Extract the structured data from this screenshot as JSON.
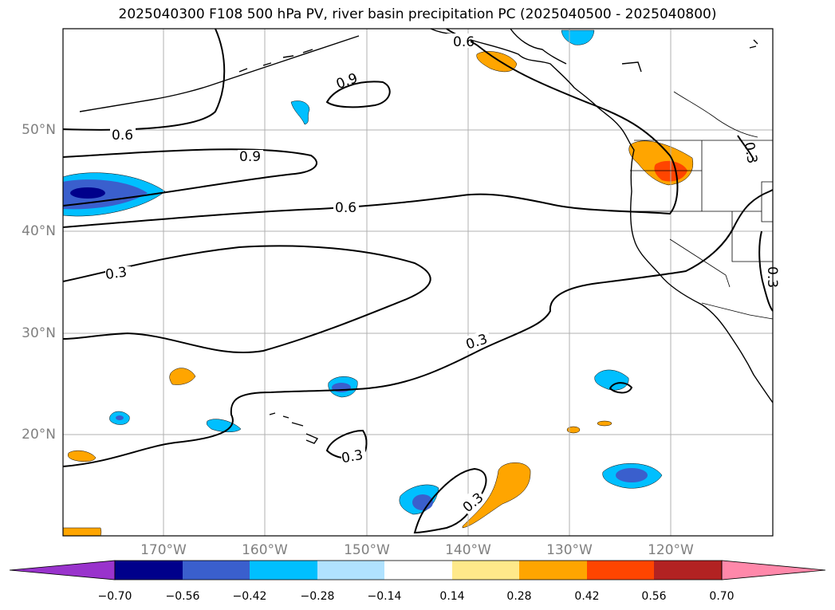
{
  "title": "2025040300 F108 500 hPa PV, river basin precipitation PC (2025040500 - 2025040800)",
  "lat_labels": [
    "50°N",
    "40°N",
    "30°N",
    "20°N"
  ],
  "lon_labels": [
    "170°W",
    "160°W",
    "150°W",
    "140°W",
    "130°W",
    "120°W"
  ],
  "contour_labels": [
    "0.6",
    "0.9",
    "0.6",
    "0.9",
    "0.6",
    "0.3",
    "0.3",
    "0.3",
    "0.3",
    "0.3",
    "0.3"
  ],
  "colorbar": {
    "ticks": [
      "−0.70",
      "−0.56",
      "−0.42",
      "−0.28",
      "−0.14",
      "0.14",
      "0.28",
      "0.42",
      "0.56",
      "0.70"
    ],
    "colors": [
      "#9933cc",
      "#00008b",
      "#3a5fcd",
      "#00bfff",
      "#b0e2ff",
      "#ffffff",
      "#ffe98a",
      "#ffa500",
      "#ff4500",
      "#b22222",
      "#ff88aa"
    ]
  }
}
